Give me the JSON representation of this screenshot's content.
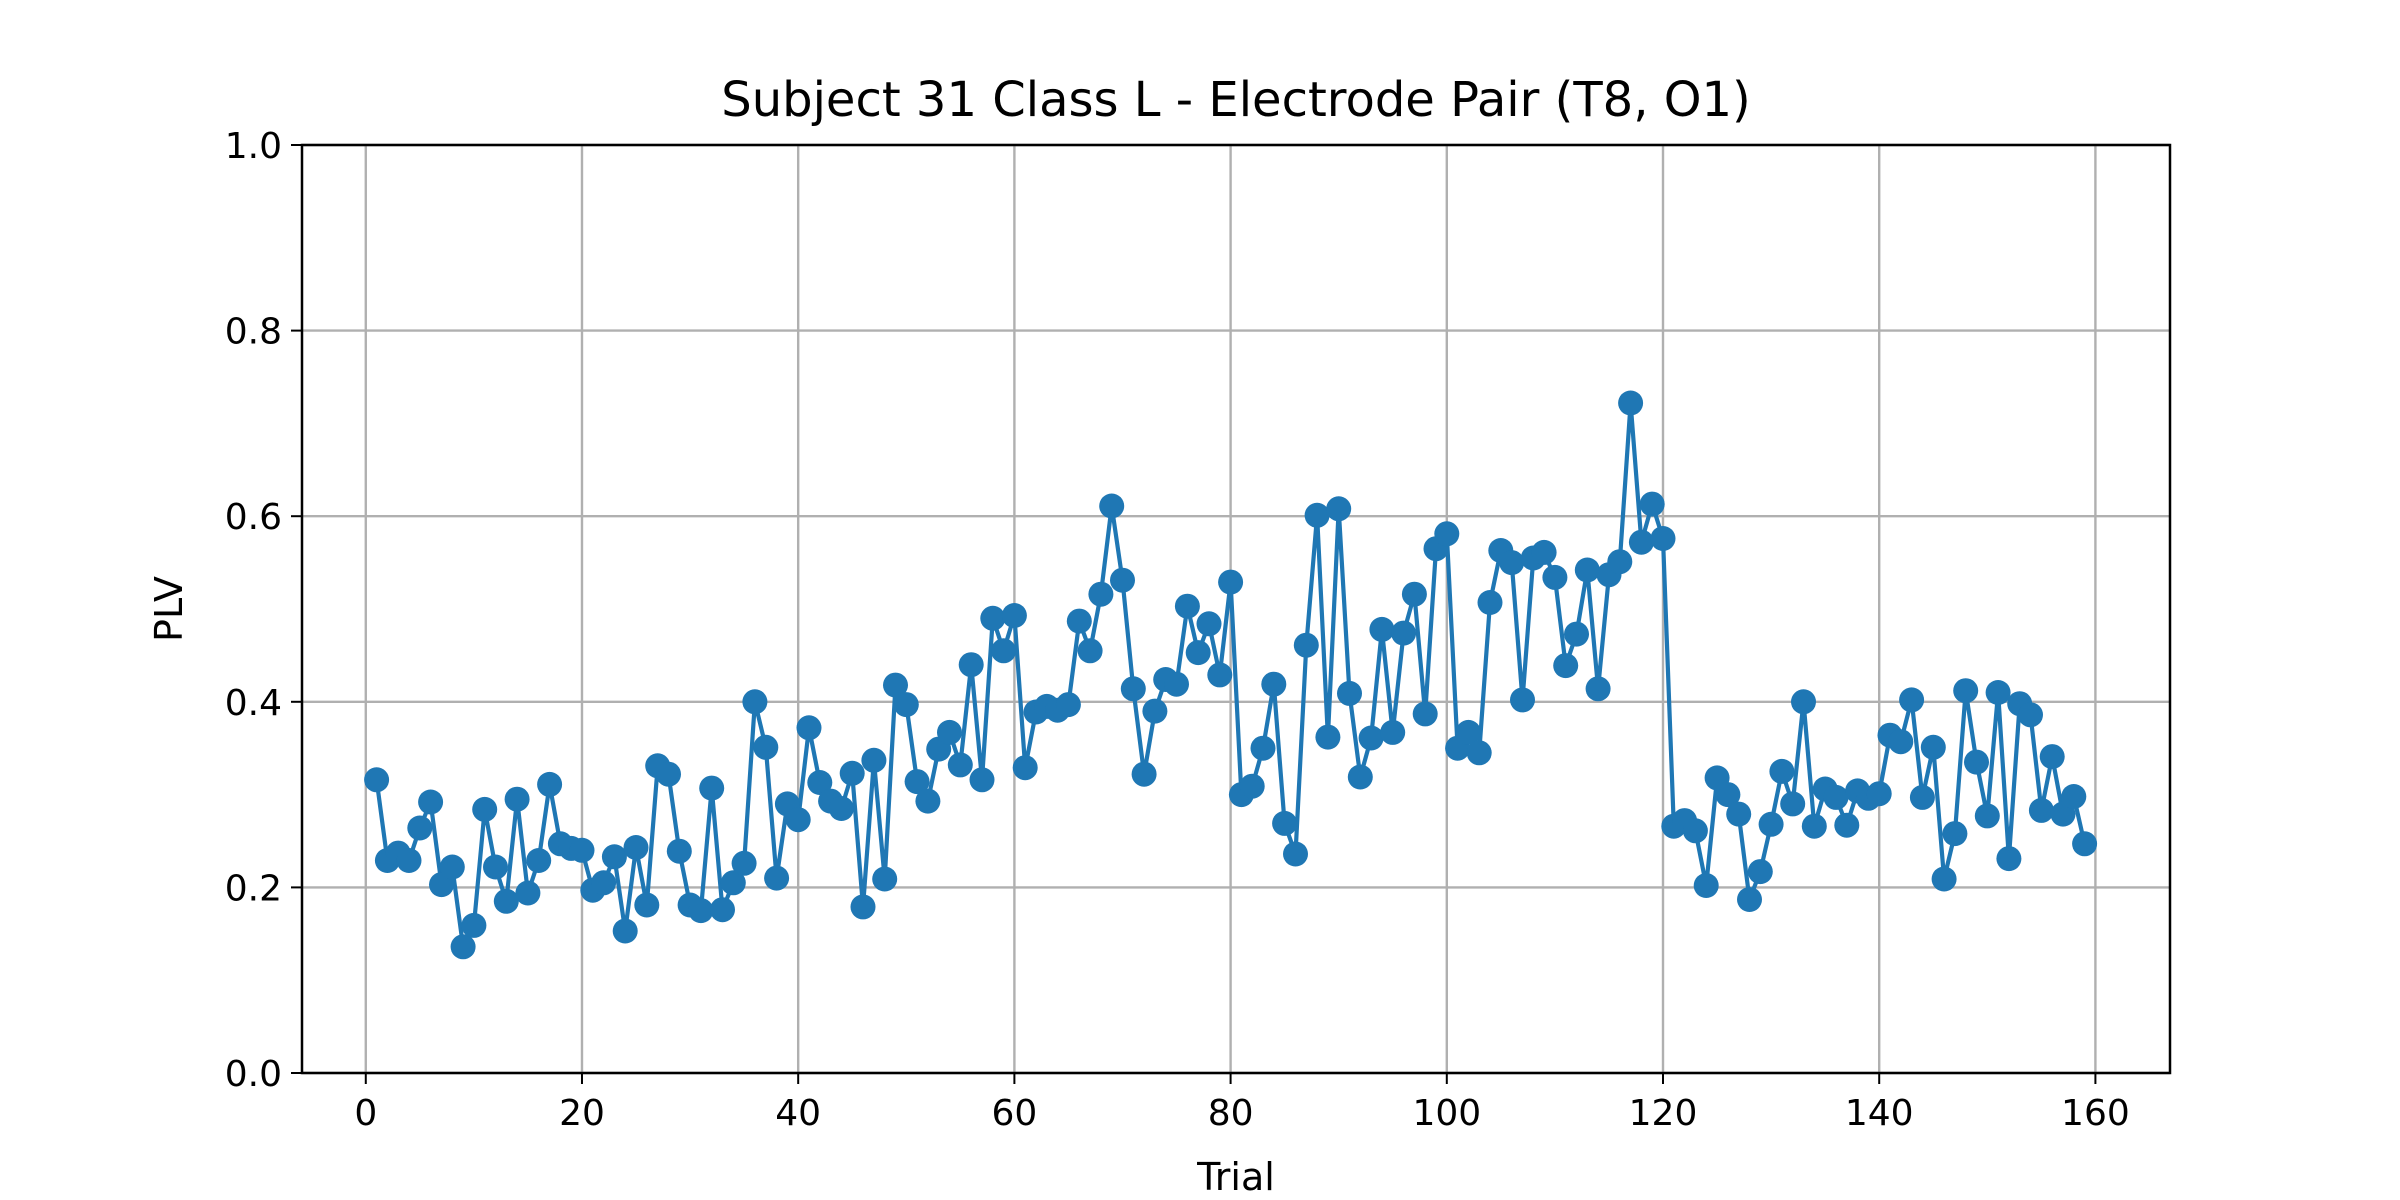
{
  "chart_data": {
    "type": "line",
    "title": "Subject 31 Class L - Electrode Pair (T8, O1)",
    "xlabel": "Trial",
    "ylabel": "PLV",
    "xlim": [
      -5.9,
      166.9
    ],
    "ylim": [
      0.0,
      1.0
    ],
    "xticks": [
      0,
      20,
      40,
      60,
      80,
      100,
      120,
      140,
      160
    ],
    "yticks": [
      0.0,
      0.2,
      0.4,
      0.6,
      0.8,
      1.0
    ],
    "xtick_labels": [
      "0",
      "20",
      "40",
      "60",
      "80",
      "100",
      "120",
      "140",
      "160"
    ],
    "ytick_labels": [
      "0.0",
      "0.2",
      "0.4",
      "0.6",
      "0.8",
      "1.0"
    ],
    "grid": true,
    "series": [
      {
        "color": "#1f77b4",
        "marker": "circle",
        "x": [
          1,
          2,
          3,
          4,
          5,
          6,
          7,
          8,
          9,
          10,
          11,
          12,
          13,
          14,
          15,
          16,
          17,
          18,
          19,
          20,
          21,
          22,
          23,
          24,
          25,
          26,
          27,
          28,
          29,
          30,
          31,
          32,
          33,
          34,
          35,
          36,
          37,
          38,
          39,
          40,
          41,
          42,
          43,
          44,
          45,
          46,
          47,
          48,
          49,
          50,
          51,
          52,
          53,
          54,
          55,
          56,
          57,
          58,
          59,
          60,
          61,
          62,
          63,
          64,
          65,
          66,
          67,
          68,
          69,
          70,
          71,
          72,
          73,
          74,
          75,
          76,
          77,
          78,
          79,
          80,
          81,
          82,
          83,
          84,
          85,
          86,
          87,
          88,
          89,
          90,
          91,
          92,
          93,
          94,
          95,
          96,
          97,
          98,
          99,
          100,
          101,
          102,
          103,
          104,
          105,
          106,
          107,
          108,
          109,
          110,
          111,
          112,
          113,
          114,
          115,
          116,
          117,
          118,
          119,
          120,
          121,
          122,
          123,
          124,
          125,
          126,
          127,
          128,
          129,
          130,
          131,
          132,
          133,
          134,
          135,
          136,
          137,
          138,
          139,
          140,
          141,
          142,
          143,
          144,
          145,
          146,
          147,
          148,
          149,
          150,
          151,
          152,
          153,
          154,
          155,
          156,
          157,
          158,
          159
        ],
        "y": [
          0.316,
          0.229,
          0.237,
          0.229,
          0.264,
          0.292,
          0.203,
          0.222,
          0.136,
          0.159,
          0.284,
          0.222,
          0.185,
          0.295,
          0.194,
          0.229,
          0.311,
          0.247,
          0.242,
          0.24,
          0.197,
          0.205,
          0.233,
          0.153,
          0.243,
          0.181,
          0.331,
          0.322,
          0.239,
          0.181,
          0.175,
          0.307,
          0.176,
          0.205,
          0.226,
          0.4,
          0.351,
          0.21,
          0.29,
          0.273,
          0.372,
          0.313,
          0.293,
          0.285,
          0.323,
          0.179,
          0.337,
          0.209,
          0.418,
          0.397,
          0.314,
          0.293,
          0.349,
          0.367,
          0.332,
          0.44,
          0.316,
          0.49,
          0.455,
          0.493,
          0.329,
          0.389,
          0.395,
          0.391,
          0.397,
          0.487,
          0.455,
          0.516,
          0.611,
          0.531,
          0.414,
          0.322,
          0.39,
          0.424,
          0.419,
          0.503,
          0.453,
          0.484,
          0.429,
          0.529,
          0.3,
          0.309,
          0.35,
          0.419,
          0.269,
          0.236,
          0.461,
          0.601,
          0.362,
          0.608,
          0.409,
          0.319,
          0.361,
          0.478,
          0.367,
          0.474,
          0.516,
          0.387,
          0.565,
          0.581,
          0.35,
          0.367,
          0.345,
          0.507,
          0.563,
          0.55,
          0.402,
          0.555,
          0.561,
          0.534,
          0.439,
          0.473,
          0.542,
          0.414,
          0.537,
          0.551,
          0.722,
          0.572,
          0.613,
          0.576,
          0.266,
          0.272,
          0.261,
          0.202,
          0.318,
          0.3,
          0.279,
          0.187,
          0.217,
          0.268,
          0.325,
          0.29,
          0.4,
          0.266,
          0.306,
          0.297,
          0.267,
          0.304,
          0.296,
          0.301,
          0.364,
          0.357,
          0.402,
          0.297,
          0.351,
          0.209,
          0.258,
          0.412,
          0.335,
          0.277,
          0.41,
          0.231,
          0.398,
          0.386,
          0.283,
          0.341,
          0.279,
          0.298,
          0.247
        ]
      }
    ]
  }
}
